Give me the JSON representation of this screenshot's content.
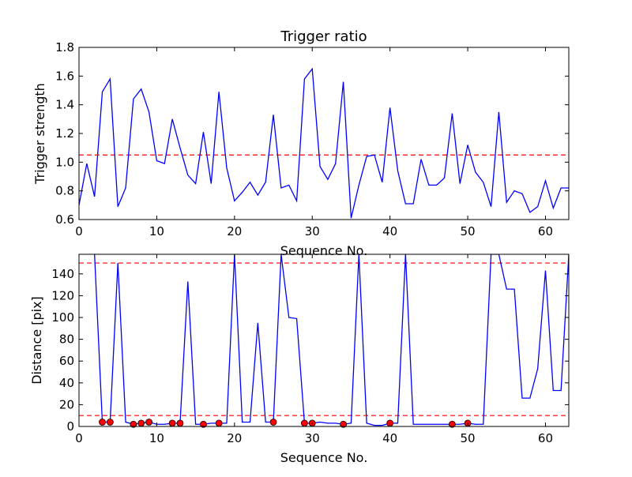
{
  "chart_data": [
    {
      "type": "line",
      "title": "Trigger ratio",
      "xlabel": "Sequence No.",
      "ylabel": "Trigger strength",
      "xlim": [
        0,
        63
      ],
      "ylim": [
        0.6,
        1.8
      ],
      "xticks": [
        "0",
        "10",
        "20",
        "30",
        "40",
        "50",
        "60"
      ],
      "yticks": [
        "0.6",
        "0.8",
        "1.0",
        "1.2",
        "1.4",
        "1.6",
        "1.8"
      ],
      "grid": false,
      "series": [
        {
          "color": "#0000ff",
          "x": [
            0,
            1,
            2,
            3,
            4,
            5,
            6,
            7,
            8,
            9,
            10,
            11,
            12,
            13,
            14,
            15,
            16,
            17,
            18,
            19,
            20,
            21,
            22,
            23,
            24,
            25,
            26,
            27,
            28,
            29,
            30,
            31,
            32,
            33,
            34,
            35,
            36,
            37,
            38,
            39,
            40,
            41,
            42,
            43,
            44,
            45,
            46,
            47,
            48,
            49,
            50,
            51,
            52,
            53,
            54,
            55,
            56,
            57,
            58,
            59,
            60,
            61,
            62,
            63
          ],
          "y": [
            0.7,
            0.99,
            0.76,
            1.49,
            1.58,
            0.69,
            0.82,
            1.44,
            1.51,
            1.35,
            1.01,
            0.99,
            1.3,
            1.1,
            0.91,
            0.85,
            1.21,
            0.85,
            1.49,
            0.96,
            0.73,
            0.79,
            0.86,
            0.77,
            0.86,
            1.33,
            0.82,
            0.84,
            0.73,
            1.58,
            1.65,
            0.97,
            0.88,
            0.99,
            1.56,
            0.61,
            0.84,
            1.04,
            1.05,
            0.86,
            1.38,
            0.94,
            0.71,
            0.71,
            1.02,
            0.84,
            0.84,
            0.89,
            1.34,
            0.85,
            1.12,
            0.93,
            0.86,
            0.69,
            1.35,
            0.72,
            0.8,
            0.78,
            0.65,
            0.69,
            0.87,
            0.68,
            0.82,
            0.82
          ]
        }
      ],
      "reference_lines": [
        {
          "y": 1.05,
          "color": "#ff0000",
          "style": "dashed"
        }
      ]
    },
    {
      "type": "line",
      "title": "",
      "xlabel": "Sequence No.",
      "ylabel": "Distance [pix]",
      "xlim": [
        0,
        63
      ],
      "ylim": [
        0,
        158
      ],
      "xticks": [
        "0",
        "10",
        "20",
        "30",
        "40",
        "50",
        "60"
      ],
      "yticks": [
        "0",
        "20",
        "40",
        "60",
        "80",
        "100",
        "120",
        "140"
      ],
      "grid": false,
      "series": [
        {
          "color": "#0000ff",
          "x": [
            2,
            3,
            4,
            5,
            6,
            7,
            8,
            9,
            10,
            11,
            12,
            13,
            14,
            15,
            16,
            17,
            18,
            19,
            20,
            21,
            22,
            23,
            24,
            25,
            26,
            27,
            28,
            29,
            30,
            31,
            32,
            33,
            34,
            35,
            36,
            37,
            38,
            39,
            40,
            41,
            42,
            43,
            44,
            45,
            46,
            47,
            48,
            49,
            50,
            51,
            52,
            53,
            54,
            55,
            56,
            57,
            58,
            59,
            60,
            61,
            62,
            63
          ],
          "y": [
            158,
            4,
            4,
            150,
            4,
            2,
            3,
            4,
            2,
            2,
            3,
            3,
            133,
            2,
            2,
            3,
            3,
            3,
            158,
            4,
            4,
            95,
            4,
            4,
            158,
            100,
            99,
            3,
            3,
            4,
            3,
            3,
            2,
            3,
            158,
            3,
            1,
            1,
            3,
            3,
            158,
            2,
            2,
            2,
            2,
            2,
            2,
            2,
            3,
            2,
            2,
            158,
            158,
            126,
            126,
            26,
            26,
            53,
            143,
            33,
            33,
            158
          ]
        }
      ],
      "markers": {
        "color": "#ff0000",
        "x": [
          3,
          4,
          7,
          8,
          9,
          12,
          13,
          16,
          18,
          25,
          29,
          30,
          34,
          40,
          48,
          50
        ],
        "y": [
          4,
          4,
          2,
          3,
          4,
          3,
          3,
          2,
          3,
          4,
          3,
          3,
          2,
          3,
          2,
          3
        ]
      },
      "reference_lines": [
        {
          "y": 150,
          "color": "#ff0000",
          "style": "dashed"
        },
        {
          "y": 10,
          "color": "#ff0000",
          "style": "dashed"
        }
      ]
    }
  ]
}
